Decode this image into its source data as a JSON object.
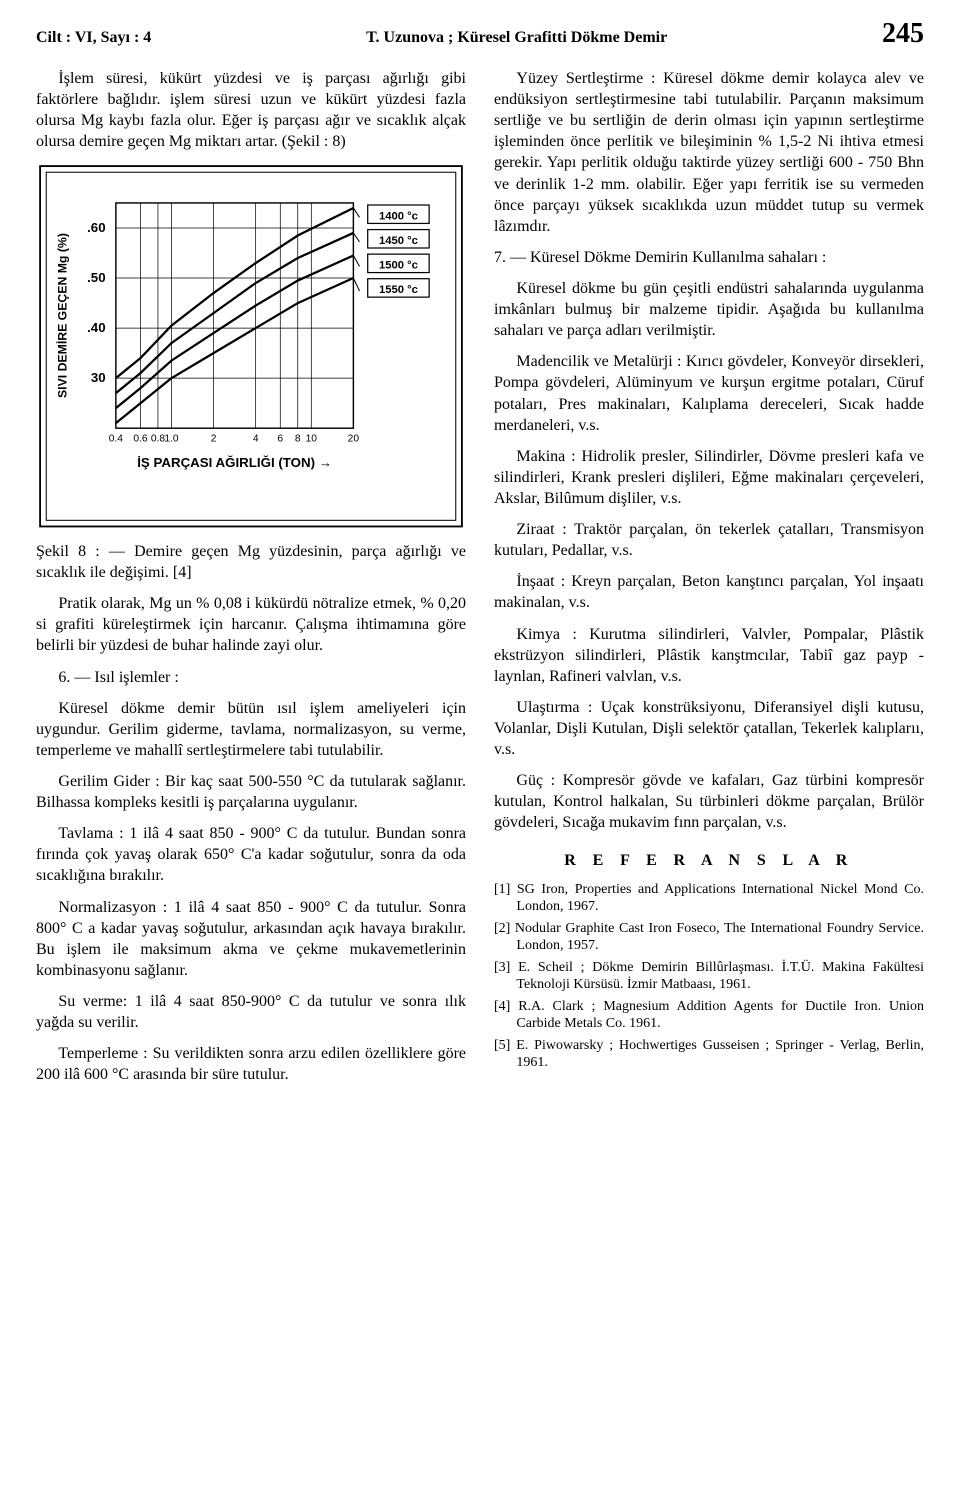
{
  "running_head": {
    "left": "Cilt : VI,  Sayı : 4",
    "center": "T. Uzunova ;  Küresel Grafitti Dökme Demir",
    "page_no": "245"
  },
  "left_col": {
    "p1": "İşlem süresi, kükürt yüzdesi ve iş parçası ağırlığı gibi faktörlere bağlıdır. işlem süresi uzun ve kükürt yüzdesi fazla olursa Mg kaybı fazla olur. Eğer iş parçası ağır ve sıcaklık alçak olursa demire geçen Mg miktarı artar. (Şekil : 8)",
    "fig8": {
      "type": "line-family",
      "title": "İŞ PARÇASI AĞIRLIĞI (TON) →",
      "ylabel": "SIVI DEMİRE GEÇEN Mg (%)",
      "xticks": [
        "0.4",
        "0.6",
        "0.8",
        "1.0",
        "2",
        "4",
        "6",
        "8",
        "10",
        "20"
      ],
      "yticks": [
        "30",
        ".40",
        ".50",
        ".60"
      ],
      "line_labels": [
        "1400 °c",
        "1450 °c",
        "1500 °c",
        "1550 °c"
      ],
      "stroke": "#000000",
      "bg": "#ffffff",
      "frame_stroke": "#000000",
      "curves": {
        "c1400": [
          [
            0.4,
            30
          ],
          [
            0.6,
            34
          ],
          [
            1.0,
            40.5
          ],
          [
            2,
            47
          ],
          [
            4,
            53
          ],
          [
            8,
            58.5
          ],
          [
            20,
            64
          ]
        ],
        "c1450": [
          [
            0.4,
            27
          ],
          [
            0.6,
            31
          ],
          [
            1.0,
            37
          ],
          [
            2,
            43
          ],
          [
            4,
            49
          ],
          [
            8,
            54
          ],
          [
            20,
            59
          ]
        ],
        "c1500": [
          [
            0.4,
            24
          ],
          [
            0.6,
            28
          ],
          [
            1.0,
            33.5
          ],
          [
            2,
            39
          ],
          [
            4,
            44.5
          ],
          [
            8,
            49.5
          ],
          [
            20,
            54.5
          ]
        ],
        "c1550": [
          [
            0.4,
            21
          ],
          [
            0.6,
            25
          ],
          [
            1.0,
            30
          ],
          [
            2,
            35
          ],
          [
            4,
            40
          ],
          [
            8,
            45
          ],
          [
            20,
            50
          ]
        ]
      },
      "x_log_domain": [
        0.4,
        20
      ],
      "y_domain": [
        20,
        65
      ],
      "line_width": 2.2
    },
    "caption": "Şekil 8 : — Demire geçen Mg yüzdesinin, parça ağırlığı ve sıcaklık ile değişimi. [4]",
    "p2": "Pratik olarak, Mg un % 0,08 i kükürdü nötralize etmek, % 0,20 si grafiti küreleştirmek için harcanır. Çalışma ihtimamına göre belirli bir yüzdesi de buhar halinde zayi olur.",
    "h6": "6. — Isıl işlemler :",
    "p3": "Küresel dökme demir bütün ısıl işlem ameliyeleri için uygundur. Gerilim giderme, tavlama, normalizasyon, su verme, temperleme ve mahallî sertleştirmelere tabi tutulabilir.",
    "p4": "Gerilim Gider : Bir kaç saat 500-550 °C da tutularak sağlanır. Bilhassa kompleks kesitli iş parçalarına uygulanır.",
    "p5": "Tavlama : 1 ilâ 4 saat 850 - 900° C da tutulur. Bundan sonra fırında çok yavaş olarak 650° C'a kadar soğutulur, sonra da oda sıcaklığına bırakılır.",
    "p6": "Normalizasyon : 1 ilâ 4 saat 850 - 900° C da tutulur. Sonra 800° C a kadar yavaş soğutulur, arkasından açık havaya bırakılır. Bu işlem ile maksimum akma ve çekme mukavemetlerinin kombinasyonu sağlanır.",
    "p7": "Su verme: 1 ilâ 4 saat 850-900° C da tutulur ve sonra ılık yağda su verilir.",
    "p8": "Temperleme : Su verildikten sonra arzu  edilen özelliklere göre 200 ilâ 600 °C arasında bir süre tutulur."
  },
  "right_col": {
    "p1": "Yüzey Sertleştirme : Küresel dökme demir kolayca alev ve endüksiyon sertleştirmesine tabi tutulabilir. Parçanın maksimum sertliğe ve bu sertliğin de derin olması için yapının sertleştirme işleminden önce perlitik ve bileşiminin % 1,5-2 Ni ihtiva etmesi gerekir. Yapı perlitik olduğu taktirde yüzey sertliği 600 - 750 Bhn ve derinlik 1-2 mm. olabilir. Eğer yapı ferritik ise su vermeden önce parçayı yüksek sıcaklıkda uzun müddet tutup su vermek lâzımdır.",
    "h7": "7. — Küresel Dökme Demirin Kullanılma sahaları :",
    "p2": "Küresel dökme bu gün çeşitli endüstri sahalarında uygulanma imkânları bulmuş bir malzeme tipidir. Aşağıda bu kullanılma sahaları ve parça adları verilmiştir.",
    "p3": "Madencilik ve Metalürji : Kırıcı gövdeler, Konveyör dirsekleri, Pompa gövdeleri, Alüminyum ve kurşun ergitme potaları, Cüruf potaları, Pres makinaları, Kalıplama dereceleri, Sıcak hadde merdaneleri, v.s.",
    "p4": "Makina : Hidrolik presler, Silindirler, Dövme presleri kafa ve silindirleri, Krank presleri dişlileri, Eğme makinaları çerçeveleri, Akslar, Bilûmum dişliler, v.s.",
    "p5": "Ziraat : Traktör parçalan, ön tekerlek çatalları, Transmisyon kutuları, Pedallar, v.s.",
    "p6": "İnşaat : Kreyn parçalan, Beton kanştıncı parçalan, Yol inşaatı makinalan, v.s.",
    "p7": "Kimya : Kurutma silindirleri, Valvler, Pompalar, Plâstik ekstrüzyon silindirleri, Plâstik kanştmcılar, Tabiî gaz payp - laynlan, Rafineri valvlan, v.s.",
    "p8": "Ulaştırma : Uçak konstrüksiyonu, Diferansiyel dişli kutusu, Volanlar, Dişli Kutulan, Dişli selektör çatallan, Tekerlek kalıplarıı, v.s.",
    "p9": "Güç : Kompresör gövde ve kafaları, Gaz türbini kompresör kutulan, Kontrol halkalan, Su türbinleri dökme parçalan, Brülör gövdeleri, Sıcağa mukavim fınn parçalan, v.s.",
    "refs_head": "R E F E R A N S L A R",
    "refs": [
      "[1]  SG Iron, Properties and Applications International Nickel Mond Co. London, 1967.",
      "[2]  Nodular Graphite Cast Iron Foseco, The International Foundry Service. London, 1957.",
      "[3]  E. Scheil ;  Dökme Demirin Billûrlaşması. İ.T.Ü. Makina Fakültesi Teknoloji Kürsüsü. İzmir Matbaası, 1961.",
      "[4]  R.A. Clark ;  Magnesium Addition Agents for Ductile Iron. Union Carbide Metals Co. 1961.",
      "[5]  E. Piwowarsky ; Hochwertiges Gusseisen ; Springer - Verlag, Berlin, 1961."
    ]
  }
}
